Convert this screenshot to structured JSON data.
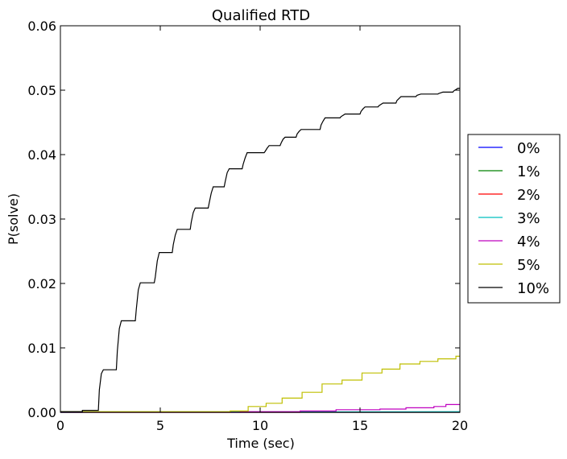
{
  "chart_data": {
    "type": "line",
    "title": "Qualified RTD",
    "xlabel": "Time (sec)",
    "ylabel": "P(solve)",
    "xlim": [
      0,
      20
    ],
    "ylim": [
      0,
      0.06
    ],
    "xticks": [
      0,
      5,
      10,
      15,
      20
    ],
    "xtick_labels": [
      "0",
      "5",
      "10",
      "15",
      "20"
    ],
    "yticks": [
      0,
      0.01,
      0.02,
      0.03,
      0.04,
      0.05,
      0.06
    ],
    "ytick_labels": [
      "0.00",
      "0.01",
      "0.02",
      "0.03",
      "0.04",
      "0.05",
      "0.06"
    ],
    "grid": false,
    "legend_position": "outside-right",
    "series": [
      {
        "name": "0%",
        "color": "#0000ff",
        "x": [
          0,
          20
        ],
        "y": [
          0,
          0
        ]
      },
      {
        "name": "1%",
        "color": "#008000",
        "x": [
          0,
          20
        ],
        "y": [
          0,
          0
        ]
      },
      {
        "name": "2%",
        "color": "#ff0000",
        "x": [
          0,
          20
        ],
        "y": [
          0,
          0
        ]
      },
      {
        "name": "3%",
        "color": "#00bfbf",
        "x": [
          0,
          20
        ],
        "y": [
          0,
          0.0001
        ]
      },
      {
        "name": "4%",
        "color": "#bf00bf",
        "x": [
          0,
          9.0,
          9.0,
          12.0,
          12.0,
          13.8,
          13.8,
          16.0,
          16.0,
          17.3,
          17.3,
          18.7,
          18.7,
          19.3,
          19.3,
          20
        ],
        "y": [
          0,
          0,
          0.0001,
          0.0001,
          0.0002,
          0.0002,
          0.0004,
          0.0004,
          0.0005,
          0.0005,
          0.0007,
          0.0007,
          0.0009,
          0.0009,
          0.0012,
          0.0012
        ]
      },
      {
        "name": "5%",
        "color": "#bfbf00",
        "x": [
          0,
          8.5,
          8.5,
          9.4,
          9.4,
          10.3,
          10.3,
          11.1,
          11.1,
          12.1,
          12.1,
          13.1,
          13.1,
          14.1,
          14.1,
          15.1,
          15.1,
          16.1,
          16.1,
          17.0,
          17.0,
          18.0,
          18.0,
          18.9,
          18.9,
          19.8,
          19.8,
          20
        ],
        "y": [
          0.0001,
          0.0001,
          0.0002,
          0.0002,
          0.0009,
          0.0009,
          0.0014,
          0.0014,
          0.0022,
          0.0022,
          0.0031,
          0.0031,
          0.0044,
          0.0044,
          0.005,
          0.005,
          0.0061,
          0.0061,
          0.0067,
          0.0067,
          0.0075,
          0.0075,
          0.0079,
          0.0079,
          0.0083,
          0.0083,
          0.0087,
          0.0087
        ]
      },
      {
        "name": "10%",
        "color": "#000000",
        "x": [
          0,
          1.1,
          1.1,
          1.9,
          1.95,
          2.05,
          2.15,
          2.8,
          2.85,
          2.95,
          3.05,
          3.75,
          3.8,
          3.9,
          4.0,
          4.7,
          4.75,
          4.85,
          4.95,
          5.6,
          5.65,
          5.75,
          5.85,
          6.5,
          6.55,
          6.65,
          6.75,
          7.4,
          7.45,
          7.55,
          7.65,
          8.2,
          8.25,
          8.35,
          8.45,
          9.1,
          9.15,
          9.25,
          9.35,
          10.2,
          10.25,
          10.35,
          10.45,
          11.0,
          11.05,
          11.15,
          11.25,
          11.8,
          11.85,
          11.95,
          12.05,
          13.0,
          13.05,
          13.15,
          13.25,
          14.0,
          14.05,
          14.15,
          14.25,
          15.0,
          15.05,
          15.15,
          15.25,
          15.9,
          15.95,
          16.05,
          16.15,
          16.8,
          16.85,
          16.95,
          17.05,
          17.8,
          17.85,
          17.95,
          18.05,
          18.9,
          18.95,
          19.05,
          19.15,
          19.65,
          19.7,
          19.8,
          19.9,
          20
        ],
        "y": [
          0.0001,
          0.0001,
          0.0003,
          0.0003,
          0.0035,
          0.006,
          0.0066,
          0.0066,
          0.0095,
          0.013,
          0.0142,
          0.0142,
          0.016,
          0.019,
          0.0201,
          0.0201,
          0.021,
          0.0235,
          0.0248,
          0.0248,
          0.026,
          0.0275,
          0.0284,
          0.0284,
          0.0295,
          0.031,
          0.0317,
          0.0317,
          0.0325,
          0.034,
          0.035,
          0.035,
          0.0358,
          0.0372,
          0.0378,
          0.0378,
          0.0385,
          0.0395,
          0.0403,
          0.0403,
          0.0405,
          0.041,
          0.0414,
          0.0414,
          0.0418,
          0.0424,
          0.0427,
          0.0427,
          0.0432,
          0.0436,
          0.0439,
          0.0439,
          0.0446,
          0.0452,
          0.0457,
          0.0457,
          0.0459,
          0.0461,
          0.0463,
          0.0463,
          0.0467,
          0.0471,
          0.0474,
          0.0474,
          0.0476,
          0.0478,
          0.048,
          0.048,
          0.0484,
          0.0487,
          0.049,
          0.049,
          0.0492,
          0.0493,
          0.0494,
          0.0494,
          0.0495,
          0.0496,
          0.0497,
          0.0497,
          0.0499,
          0.0501,
          0.0503,
          0.0503
        ]
      }
    ]
  }
}
